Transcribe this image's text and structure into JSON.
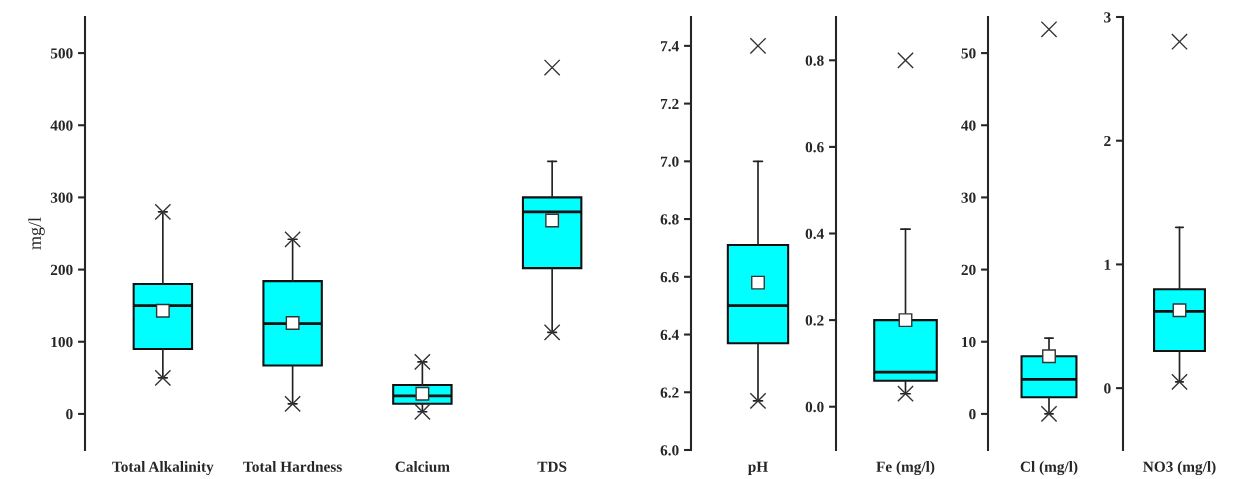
{
  "chart_data": [
    {
      "type": "box",
      "ylabel": "mg/l",
      "categories": [
        "Total Alkalinity",
        "Total Hardness",
        "Calcium",
        "TDS"
      ],
      "ylim": [
        -50,
        550
      ],
      "yticks": [
        0,
        100,
        200,
        300,
        400,
        500
      ],
      "marker": "cross",
      "series": [
        {
          "color": "#00ffff",
          "boxes": [
            {
              "low": 50,
              "q1": 90,
              "median": 150,
              "q3": 180,
              "high": 280,
              "mean": 143,
              "outliers": [
                50,
                280
              ]
            },
            {
              "low": 14,
              "q1": 67,
              "median": 125,
              "q3": 184,
              "high": 242,
              "mean": 126,
              "outliers": [
                14,
                242
              ]
            },
            {
              "low": 3,
              "q1": 14,
              "median": 25,
              "q3": 40,
              "high": 72,
              "mean": 28,
              "outliers": [
                3,
                72
              ]
            },
            {
              "low": 113,
              "q1": 202,
              "median": 280,
              "q3": 300,
              "high": 350,
              "mean": 268,
              "outliers": [
                113,
                480
              ]
            }
          ]
        }
      ]
    },
    {
      "type": "box",
      "categories": [
        "pH"
      ],
      "ylim": [
        6.0,
        7.5
      ],
      "yticks": [
        {
          "value": 6.0,
          "label": "6.0"
        },
        {
          "value": 6.2,
          "label": "6.2"
        },
        {
          "value": 6.4,
          "label": "6.4"
        },
        {
          "value": 6.6,
          "label": "6.6"
        },
        {
          "value": 6.8,
          "label": "6.8"
        },
        {
          "value": 7.0,
          "label": "7.0"
        },
        {
          "value": 7.2,
          "label": "7.2"
        },
        {
          "value": 7.4,
          "label": "7.4"
        }
      ],
      "marker": "cross",
      "series": [
        {
          "color": "#00ffff",
          "boxes": [
            {
              "low": 6.17,
              "q1": 6.37,
              "median": 6.5,
              "q3": 6.71,
              "high": 7.0,
              "mean": 6.58,
              "outliers": [
                6.17,
                7.4
              ]
            }
          ]
        }
      ]
    },
    {
      "type": "box",
      "categories": [
        "Fe (mg/l)"
      ],
      "ylim": [
        -0.1,
        0.9
      ],
      "yticks": [
        {
          "value": 0.0,
          "label": "0.0"
        },
        {
          "value": 0.2,
          "label": "0.2"
        },
        {
          "value": 0.4,
          "label": "0.4"
        },
        {
          "value": 0.6,
          "label": "0.6"
        },
        {
          "value": 0.8,
          "label": "0.8"
        }
      ],
      "marker": "cross",
      "series": [
        {
          "color": "#00ffff",
          "boxes": [
            {
              "low": 0.03,
              "q1": 0.06,
              "median": 0.08,
              "q3": 0.2,
              "high": 0.41,
              "mean": 0.2,
              "outliers": [
                0.03,
                0.8
              ]
            }
          ]
        }
      ]
    },
    {
      "type": "box",
      "categories": [
        "Cl (mg/l)"
      ],
      "ylim": [
        -5,
        55
      ],
      "yticks": [
        0,
        10,
        20,
        30,
        40,
        50
      ],
      "marker": "cross",
      "series": [
        {
          "color": "#00ffff",
          "boxes": [
            {
              "low": 0,
              "q1": 2.3,
              "median": 4.8,
              "q3": 8,
              "high": 10.5,
              "mean": 8,
              "outliers": [
                0,
                53.3
              ]
            }
          ]
        }
      ]
    },
    {
      "type": "box",
      "categories": [
        "NO3 (mg/l)"
      ],
      "ylim": [
        -0.5,
        3
      ],
      "yticks": [
        0,
        1,
        2,
        3
      ],
      "marker": "cross",
      "series": [
        {
          "color": "#00ffff",
          "boxes": [
            {
              "low": 0.05,
              "q1": 0.3,
              "median": 0.62,
              "q3": 0.8,
              "high": 1.3,
              "mean": 0.63,
              "outliers": [
                0.05,
                2.8
              ]
            }
          ]
        }
      ]
    }
  ]
}
